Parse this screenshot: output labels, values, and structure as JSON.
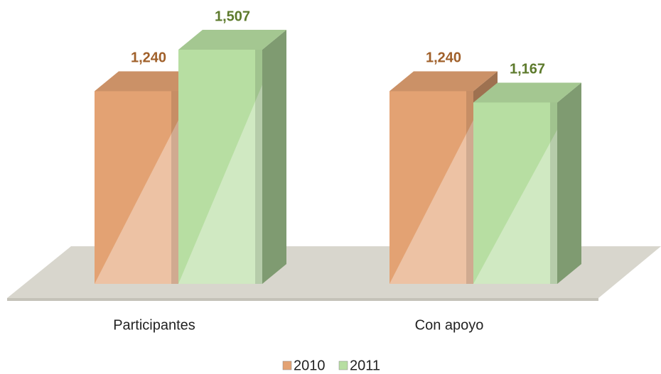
{
  "chart_data": {
    "type": "bar3d",
    "categories": [
      "Participantes",
      "Con apoyo"
    ],
    "series": [
      {
        "name": "2010",
        "color": "#e3a273",
        "label_color": "#a0602a",
        "values": [
          1240,
          1240
        ],
        "value_labels": [
          "1,240",
          "1,240"
        ]
      },
      {
        "name": "2011",
        "color": "#b7dea2",
        "label_color": "#5d7a2c",
        "values": [
          1507,
          1167
        ],
        "value_labels": [
          "1,507",
          "1,167"
        ]
      }
    ],
    "legend": "bottom"
  }
}
